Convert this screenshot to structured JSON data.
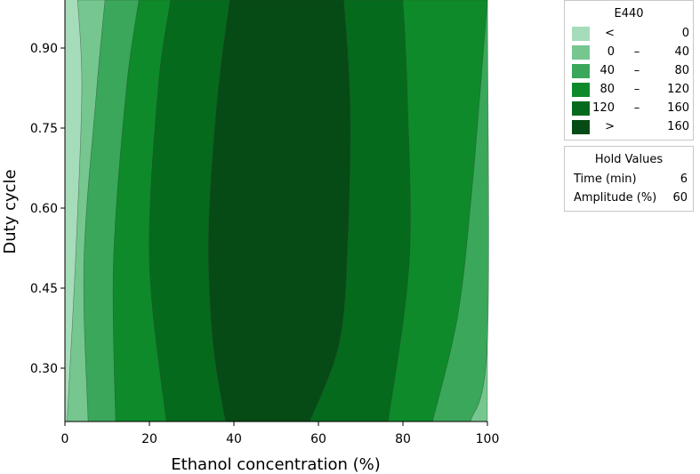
{
  "chart_data": {
    "type": "contour",
    "xlabel": "Ethanol concentration (%)",
    "ylabel": "Duty cycle",
    "xlim": [
      0,
      100
    ],
    "ylim": [
      0.2,
      0.99
    ],
    "xticks": [
      "0",
      "20",
      "40",
      "60",
      "80",
      "100"
    ],
    "yticks": [
      "0.30",
      "0.45",
      "0.60",
      "0.75",
      "0.90"
    ],
    "legend": {
      "title": "E440",
      "position": "top-right",
      "levels": [
        {
          "from": "<",
          "to": "0",
          "color": "#a6dcb9"
        },
        {
          "from": "0",
          "to": "40",
          "color": "#76c690"
        },
        {
          "from": "40",
          "to": "80",
          "color": "#3aa75a"
        },
        {
          "from": "80",
          "to": "120",
          "color": "#0e8a2a"
        },
        {
          "from": "120",
          "to": "160",
          "color": "#066a1c"
        },
        {
          "from": ">",
          "to": "160",
          "color": "#064a15"
        }
      ]
    },
    "hold_values": {
      "title": "Hold Values",
      "items": [
        {
          "name": "Time (min)",
          "value": "6"
        },
        {
          "name": "Amplitude (%)",
          "value": "60"
        }
      ]
    },
    "contour_boundaries": [
      {
        "level": 0,
        "left": [
          [
            0.2,
            0.5
          ],
          [
            0.5,
            2.5
          ],
          [
            0.82,
            4.0
          ],
          [
            0.99,
            3.0
          ]
        ],
        "right": [
          [
            0.2,
            100
          ],
          [
            0.35,
            100
          ],
          [
            0.99,
            100
          ]
        ]
      },
      {
        "level": 40,
        "left": [
          [
            0.2,
            5.5
          ],
          [
            0.5,
            4.5
          ],
          [
            0.82,
            7.5
          ],
          [
            0.99,
            9.5
          ]
        ],
        "right": [
          [
            0.2,
            96
          ],
          [
            0.35,
            100
          ],
          [
            0.99,
            100
          ]
        ]
      },
      {
        "level": 80,
        "left": [
          [
            0.2,
            12
          ],
          [
            0.5,
            11.5
          ],
          [
            0.82,
            14.5
          ],
          [
            0.99,
            17.5
          ]
        ],
        "right": [
          [
            0.2,
            87
          ],
          [
            0.4,
            93
          ],
          [
            0.65,
            96.5
          ],
          [
            0.99,
            100
          ]
        ]
      },
      {
        "level": 120,
        "left": [
          [
            0.2,
            24
          ],
          [
            0.5,
            20
          ],
          [
            0.82,
            22
          ],
          [
            0.99,
            25
          ]
        ],
        "right": [
          [
            0.2,
            76.5
          ],
          [
            0.5,
            81.5
          ],
          [
            0.82,
            81
          ],
          [
            0.99,
            80
          ]
        ]
      },
      {
        "level": 160,
        "left": [
          [
            0.2,
            38
          ],
          [
            0.35,
            35
          ],
          [
            0.55,
            34
          ],
          [
            0.8,
            36
          ],
          [
            0.99,
            39
          ]
        ],
        "right": [
          [
            0.2,
            58
          ],
          [
            0.35,
            65
          ],
          [
            0.55,
            67
          ],
          [
            0.8,
            67.5
          ],
          [
            0.99,
            66
          ]
        ]
      }
    ]
  }
}
